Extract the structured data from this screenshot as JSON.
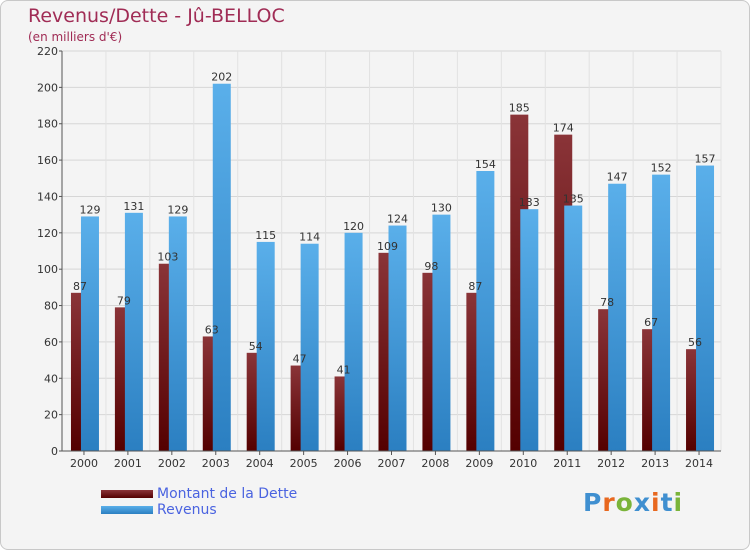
{
  "chart_data": {
    "type": "bar",
    "title": "Revenus/Dette - Jû-BELLOC",
    "subtitle": "(en milliers d'€)",
    "categories": [
      "2000",
      "2001",
      "2002",
      "2003",
      "2004",
      "2005",
      "2006",
      "2007",
      "2008",
      "2009",
      "2010",
      "2011",
      "2012",
      "2013",
      "2014"
    ],
    "series": [
      {
        "name": "Montant de la Dette",
        "values": [
          87,
          79,
          103,
          63,
          54,
          47,
          41,
          109,
          98,
          87,
          185,
          174,
          78,
          67,
          56
        ]
      },
      {
        "name": "Revenus",
        "values": [
          129,
          131,
          129,
          202,
          115,
          114,
          120,
          124,
          130,
          154,
          133,
          135,
          147,
          152,
          157
        ]
      }
    ],
    "ylim": [
      0,
      220
    ],
    "yticks": [
      0,
      20,
      40,
      60,
      80,
      100,
      120,
      140,
      160,
      180,
      200,
      220
    ],
    "grid": true,
    "legend_position": "bottom-left"
  },
  "colors": {
    "dette_light": "#8a3438",
    "dette_dark": "#540000",
    "revenus_light": "#5aafea",
    "revenus_dark": "#2b7fc1",
    "title": "#a02c55",
    "legend_text": "#4a63e0"
  },
  "logo": {
    "text": "Proxiti",
    "letters": [
      "P",
      "r",
      "o",
      "x",
      "i",
      "t",
      "i"
    ],
    "colors": [
      "#3f8fd0",
      "#e8681f",
      "#7ab43a",
      "#3f8fd0",
      "#e8681f",
      "#3f8fd0",
      "#7ab43a"
    ]
  }
}
